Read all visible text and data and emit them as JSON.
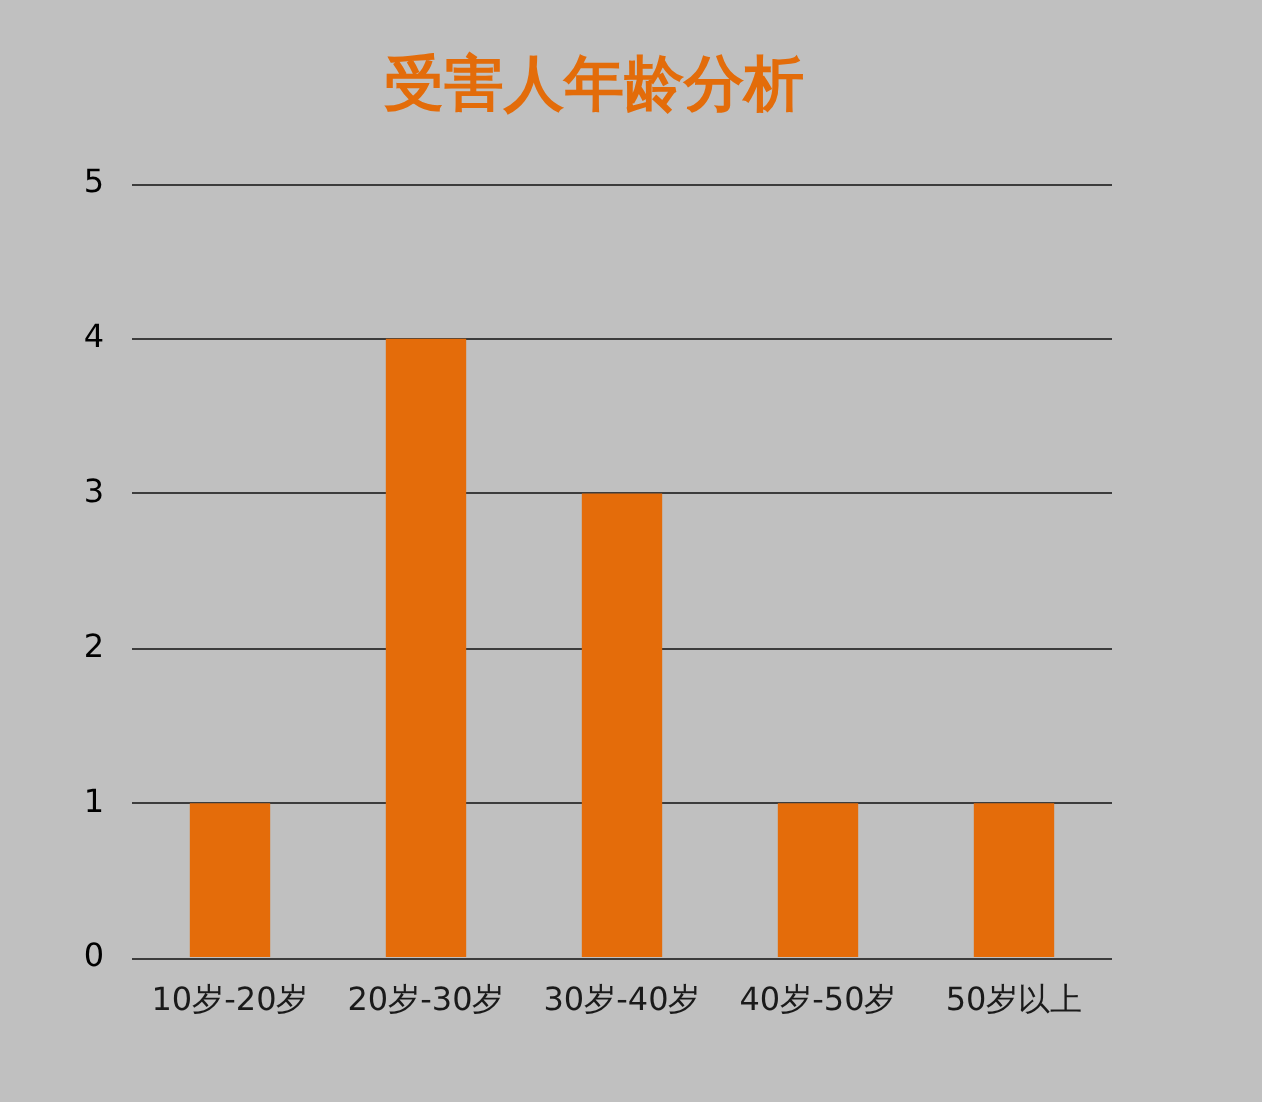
{
  "chart_data": {
    "type": "bar",
    "title": "受害人年龄分析",
    "categories": [
      "10岁-20岁",
      "20岁-30岁",
      "30岁-40岁",
      "40岁-50岁",
      "50岁以上"
    ],
    "values": [
      1,
      4,
      3,
      1,
      1
    ],
    "color": "#e46c0a",
    "ylim": [
      0,
      5
    ],
    "yticks": [
      0,
      1,
      2,
      3,
      4,
      5
    ],
    "grid": "y"
  }
}
